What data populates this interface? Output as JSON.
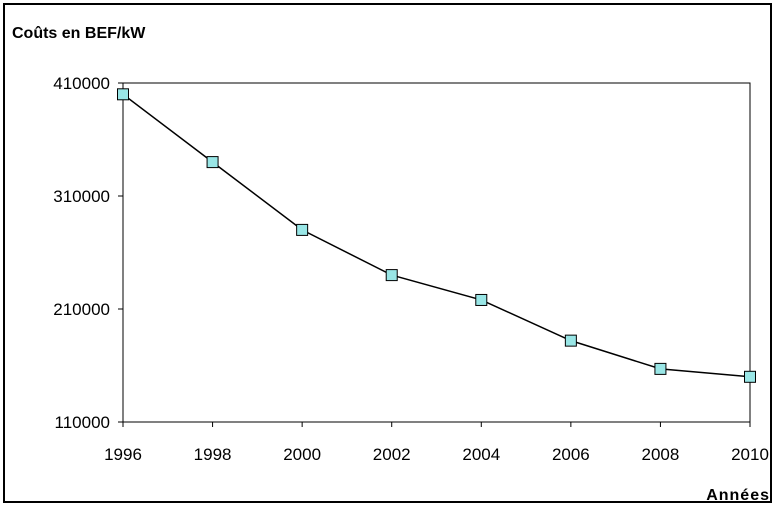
{
  "chart_data": {
    "type": "line",
    "ylabel": "Coûts en BEF/kW",
    "xlabel": "Années",
    "x": [
      1996,
      1998,
      2000,
      2002,
      2004,
      2006,
      2008,
      2010
    ],
    "series": [
      {
        "values": [
          400000,
          340000,
          280000,
          240000,
          218000,
          182000,
          157000,
          150000
        ]
      }
    ],
    "xlim": [
      1996,
      2010
    ],
    "ylim": [
      110000,
      410000
    ],
    "yticks": [
      110000,
      210000,
      310000,
      410000
    ],
    "xticks": [
      1996,
      1998,
      2000,
      2002,
      2004,
      2006,
      2008,
      2010
    ],
    "grid": false,
    "colors": {
      "line": "#000000",
      "marker_fill": "#99E6E6",
      "marker_stroke": "#000000"
    }
  }
}
